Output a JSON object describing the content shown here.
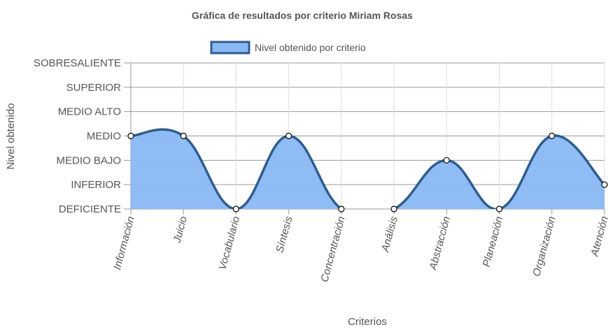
{
  "chart_data": {
    "type": "area",
    "title": "Gráfica de resultados por criterio Miriam Rosas",
    "xlabel": "Criterios",
    "ylabel": "Nivel obtenido",
    "legend_position": "top",
    "grid": true,
    "levels": [
      "DEFICIENTE",
      "INFERIOR",
      "MEDIO BAJO",
      "MEDIO",
      "MEDIO ALTO",
      "SUPERIOR",
      "SOBRESALIENTE"
    ],
    "categories": [
      "Información",
      "Juicio",
      "Vocabulario",
      "Síntesis",
      "Concentración",
      "Análisis",
      "Abstracción",
      "Planeación",
      "Organización",
      "Atención"
    ],
    "ylim": [
      0,
      6
    ],
    "series": [
      {
        "name": "Nivel obtenido por criterio",
        "values": [
          3,
          3,
          0,
          3,
          0,
          0,
          2,
          0,
          3,
          1
        ],
        "fill_color": "#8ab8f4",
        "line_color": "#2f5d8f"
      }
    ]
  }
}
